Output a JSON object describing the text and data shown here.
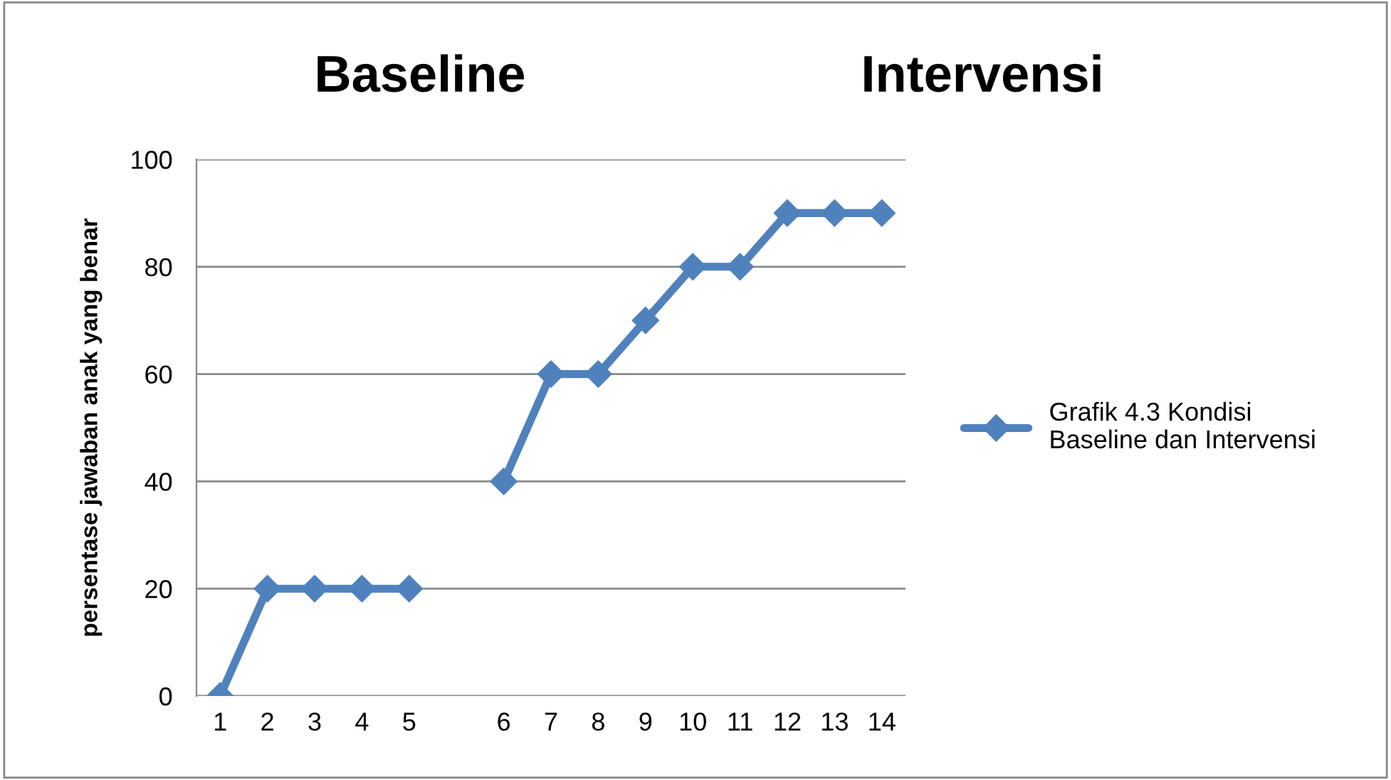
{
  "chart_data": {
    "type": "line",
    "annotations": [
      "Baseline",
      "Intervensi"
    ],
    "ylabel": "persentase jawaban anak yang benar",
    "categories": [
      "1",
      "2",
      "3",
      "4",
      "5",
      null,
      "6",
      "7",
      "8",
      "9",
      "10",
      "11",
      "12",
      "13",
      "14"
    ],
    "series": [
      {
        "name": "Grafik 4.3 Kondisi Baseline dan Intervensi",
        "color": "#4f81bd",
        "values": [
          0,
          20,
          20,
          20,
          20,
          null,
          40,
          60,
          60,
          70,
          80,
          80,
          90,
          90,
          90
        ]
      }
    ],
    "ylim": [
      0,
      100
    ],
    "yticks": [
      0,
      20,
      40,
      60,
      80,
      100
    ],
    "grid": "y",
    "legend": "right",
    "marker": "diamond",
    "line_style": "solid"
  }
}
